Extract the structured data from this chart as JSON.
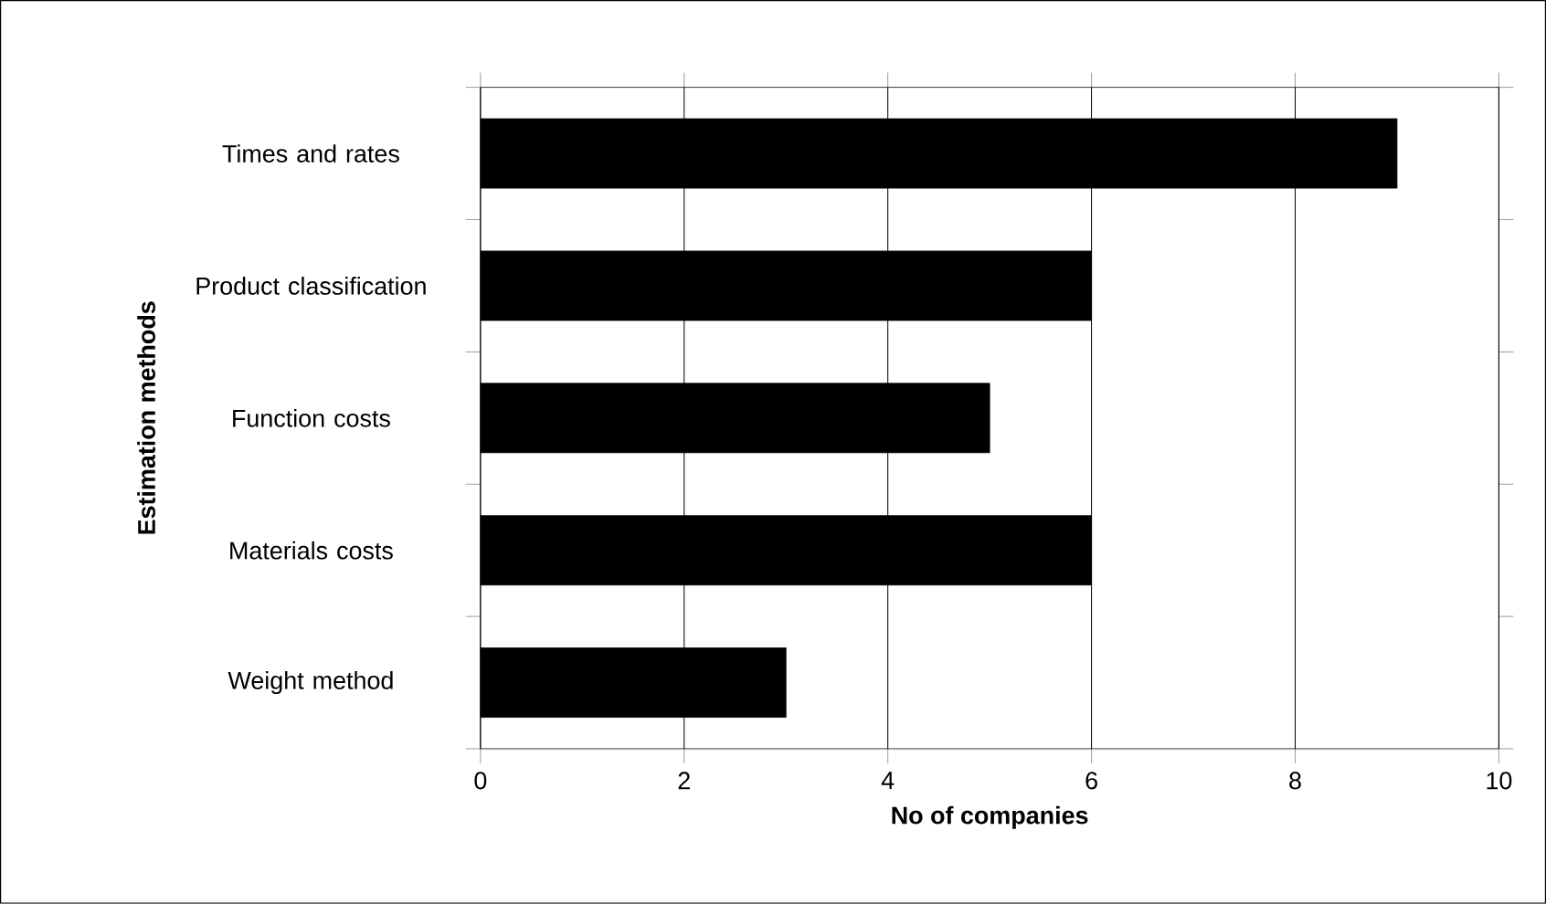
{
  "chart_data": {
    "type": "bar",
    "orientation": "horizontal",
    "categories": [
      "Times and rates",
      "Product classification",
      "Function costs",
      "Materials costs",
      "Weight method"
    ],
    "values": [
      9,
      6,
      5,
      6,
      3
    ],
    "color": "#000000",
    "xlim": [
      0,
      10
    ],
    "xticks": [
      0,
      2,
      4,
      6,
      8,
      10
    ],
    "grid": "x",
    "xlabel": "No of companies",
    "ylabel": "Estimation methods"
  }
}
